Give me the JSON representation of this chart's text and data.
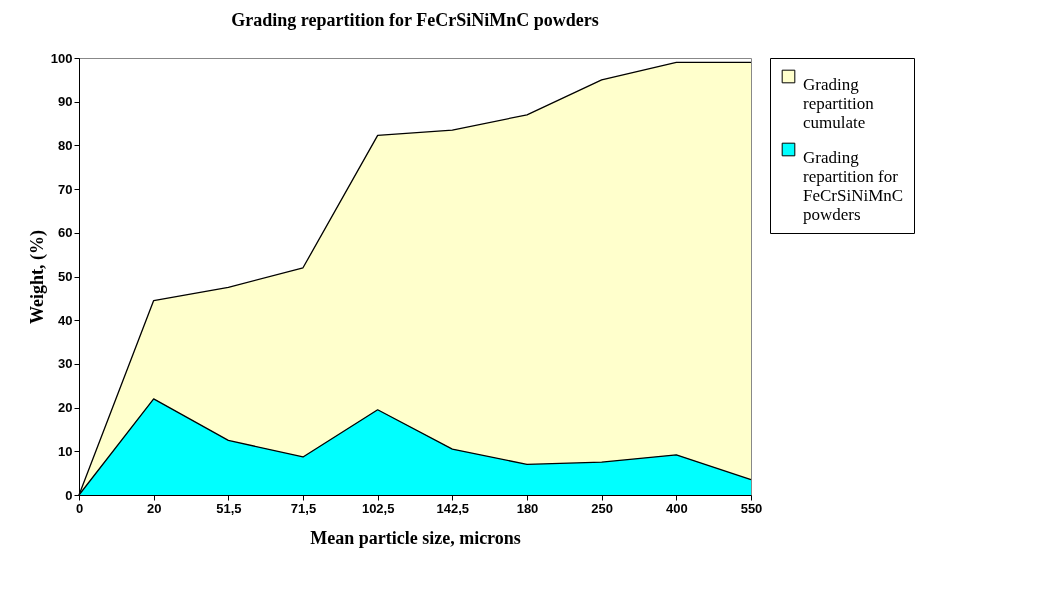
{
  "chart_data": {
    "type": "area",
    "title": "Grading repartition for FeCrSiNiMnC powders",
    "xlabel": "Mean particle size, microns",
    "ylabel": "Weight, (%)",
    "categories": [
      "0",
      "20",
      "51,5",
      "71,5",
      "102,5",
      "142,5",
      "180",
      "250",
      "400",
      "550"
    ],
    "series": [
      {
        "name": "Grading repartition cumulate",
        "color": "#ffffcc",
        "values": [
          0,
          44.5,
          47.5,
          52,
          82.3,
          83.5,
          87,
          95,
          99,
          99
        ]
      },
      {
        "name": "Grading repartition for FeCrSiNiMnC powders",
        "color": "#00ffff",
        "values": [
          0,
          22,
          12.5,
          8.7,
          19.5,
          10.5,
          7,
          7.5,
          9.2,
          3.5
        ]
      }
    ],
    "ylim": [
      0,
      100
    ],
    "yticks": [
      0,
      10,
      20,
      30,
      40,
      50,
      60,
      70,
      80,
      90,
      100
    ],
    "grid": false,
    "legend": "top right"
  }
}
